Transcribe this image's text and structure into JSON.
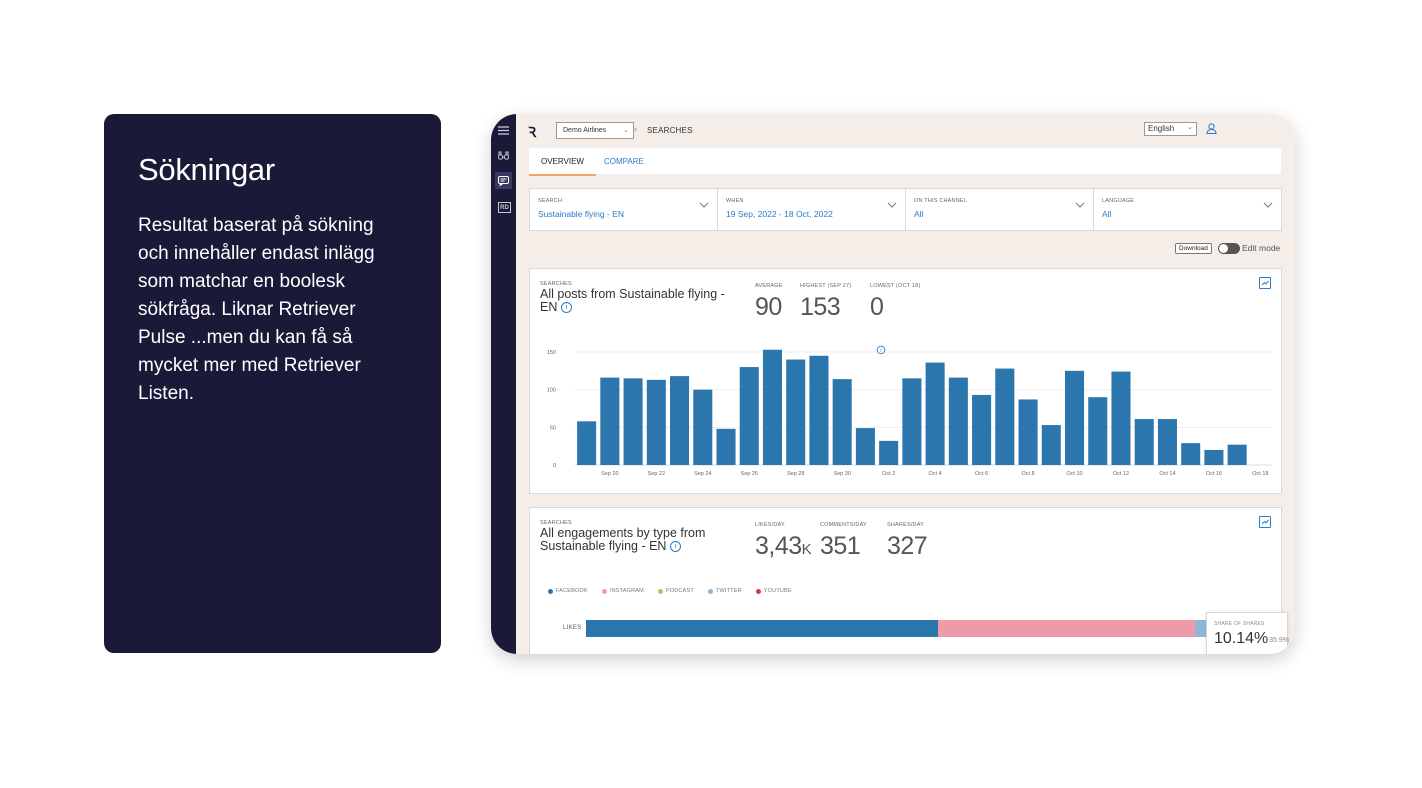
{
  "info": {
    "title": "Sökningar",
    "body": "Resultat baserat på sökning och innehåller endast inlägg som matchar en boolesk sökfråga. Liknar Retriever Pulse ...men du kan få så mycket mer med Retriever Listen."
  },
  "app": {
    "logo": "Ꝛ",
    "org_select": "Demo Airlines",
    "breadcrumb": "SEARCHES",
    "language": "English",
    "tabs": [
      "OVERVIEW",
      "COMPARE"
    ],
    "filters": [
      {
        "label": "SEARCH",
        "value": "Sustainable flying - EN"
      },
      {
        "label": "WHEN",
        "value": "19 Sep, 2022 - 18 Oct, 2022"
      },
      {
        "label": "ON THIS CHANNEL",
        "value": "All"
      },
      {
        "label": "LANGUAGE",
        "value": "All"
      }
    ],
    "download_label": "Download",
    "edit_mode_label": "Edit mode",
    "colors": {
      "accent": "#2a7cc8",
      "bar": "#2b76ad",
      "sidebar": "#1b1938",
      "bg": "#f4ede8"
    }
  },
  "card1": {
    "kicker": "SEARCHES",
    "title": "All posts from Sustainable flying - EN",
    "stats": [
      {
        "label": "AVERAGE",
        "value": "90"
      },
      {
        "label": "HIGHEST (SEP 27)",
        "value": "153"
      },
      {
        "label": "LOWEST (OCT 18)",
        "value": "0"
      }
    ]
  },
  "card2": {
    "kicker": "SEARCHES",
    "title": "All engagements by type from Sustainable flying - EN",
    "stats": [
      {
        "label": "LIKES/DAY",
        "value": "3,43",
        "suffix": "K"
      },
      {
        "label": "COMMENTS/DAY",
        "value": "351"
      },
      {
        "label": "SHARES/DAY",
        "value": "327"
      }
    ],
    "legend": [
      {
        "name": "FACEBOOK",
        "color": "#2b76ad"
      },
      {
        "name": "INSTAGRAM",
        "color": "#ef9aa8"
      },
      {
        "name": "PODCAST",
        "color": "#a3c86a"
      },
      {
        "name": "TWITTER",
        "color": "#8fb8d8"
      },
      {
        "name": "YOUTUBE",
        "color": "#e0363c"
      }
    ],
    "likes_label": "LIKES",
    "likes_shares": [
      {
        "name": "FACEBOOK",
        "share": 0.567,
        "color": "#2b76ad"
      },
      {
        "name": "INSTAGRAM",
        "share": 0.415,
        "color": "#ef9aa8"
      },
      {
        "name": "TWITTER",
        "share": 0.018,
        "color": "#8fb8d8"
      }
    ],
    "tooltip": {
      "label": "SHARE OF SHARES",
      "value": "10.14%",
      "change": "+35.9%"
    }
  },
  "chart_data": {
    "type": "bar",
    "title": "All posts from Sustainable flying - EN",
    "xlabel": "",
    "ylabel": "",
    "ylim": [
      0,
      160
    ],
    "yticks": [
      0,
      50,
      100,
      150
    ],
    "categories": [
      "Sep 19",
      "Sep 20",
      "Sep 21",
      "Sep 22",
      "Sep 23",
      "Sep 24",
      "Sep 25",
      "Sep 26",
      "Sep 27",
      "Sep 28",
      "Sep 29",
      "Sep 30",
      "Oct 1",
      "Oct 2",
      "Oct 3",
      "Oct 4",
      "Oct 5",
      "Oct 6",
      "Oct 7",
      "Oct 8",
      "Oct 9",
      "Oct 10",
      "Oct 11",
      "Oct 12",
      "Oct 13",
      "Oct 14",
      "Oct 15",
      "Oct 16",
      "Oct 17",
      "Oct 18"
    ],
    "values": [
      58,
      116,
      115,
      113,
      118,
      100,
      48,
      130,
      153,
      140,
      145,
      114,
      49,
      32,
      115,
      136,
      116,
      93,
      128,
      87,
      53,
      125,
      90,
      124,
      61,
      61,
      29,
      20,
      27,
      0
    ],
    "tick_labels": [
      "Sep 20",
      "Sep 22",
      "Sep 24",
      "Sep 26",
      "Sep 28",
      "Sep 30",
      "Oct 2",
      "Oct 4",
      "Oct 6",
      "Oct 8",
      "Oct 10",
      "Oct 12",
      "Oct 14",
      "Oct 16",
      "Oct 18"
    ]
  }
}
